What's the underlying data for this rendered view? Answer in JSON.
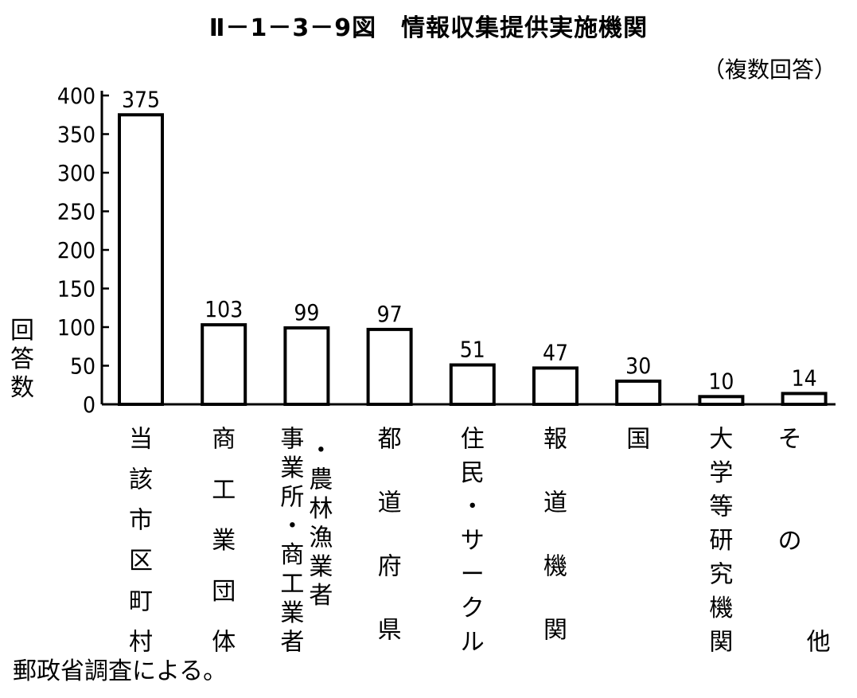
{
  "title": "Ⅱ－1－3－9図　情報収集提供実施機関",
  "note": "（複数回答）",
  "source": "郵政省調査による。",
  "chart_data": {
    "type": "bar",
    "title": "Ⅱ－1－3－9図　情報収集提供実施機関",
    "ylabel": "回答数",
    "xlabel": "",
    "ylim": [
      0,
      400
    ],
    "yticks": [
      "0",
      "50",
      "100",
      "150",
      "200",
      "250",
      "300",
      "350",
      "400"
    ],
    "grid": false,
    "categories": [
      "当該市区町村",
      "商工業団体",
      "事業所・農林漁業者・商工業者",
      "都道府県",
      "住民・サークル",
      "報道機関",
      "国",
      "大学等研究機関",
      "その他"
    ],
    "category_columns": [
      [
        "当該市区町村"
      ],
      [
        "商工業団体"
      ],
      [
        "事業所・商工業者",
        "・農林漁業者"
      ],
      [
        "都道府県"
      ],
      [
        "住民・サークル"
      ],
      [
        "報道機関"
      ],
      [
        "国"
      ],
      [
        "大学等研究機関"
      ],
      [
        "その",
        "他"
      ]
    ],
    "values": [
      375,
      103,
      99,
      97,
      51,
      47,
      30,
      10,
      14
    ],
    "value_labels": [
      "375",
      "103",
      "99",
      "97",
      "51",
      "47",
      "30",
      "10",
      "14"
    ]
  }
}
